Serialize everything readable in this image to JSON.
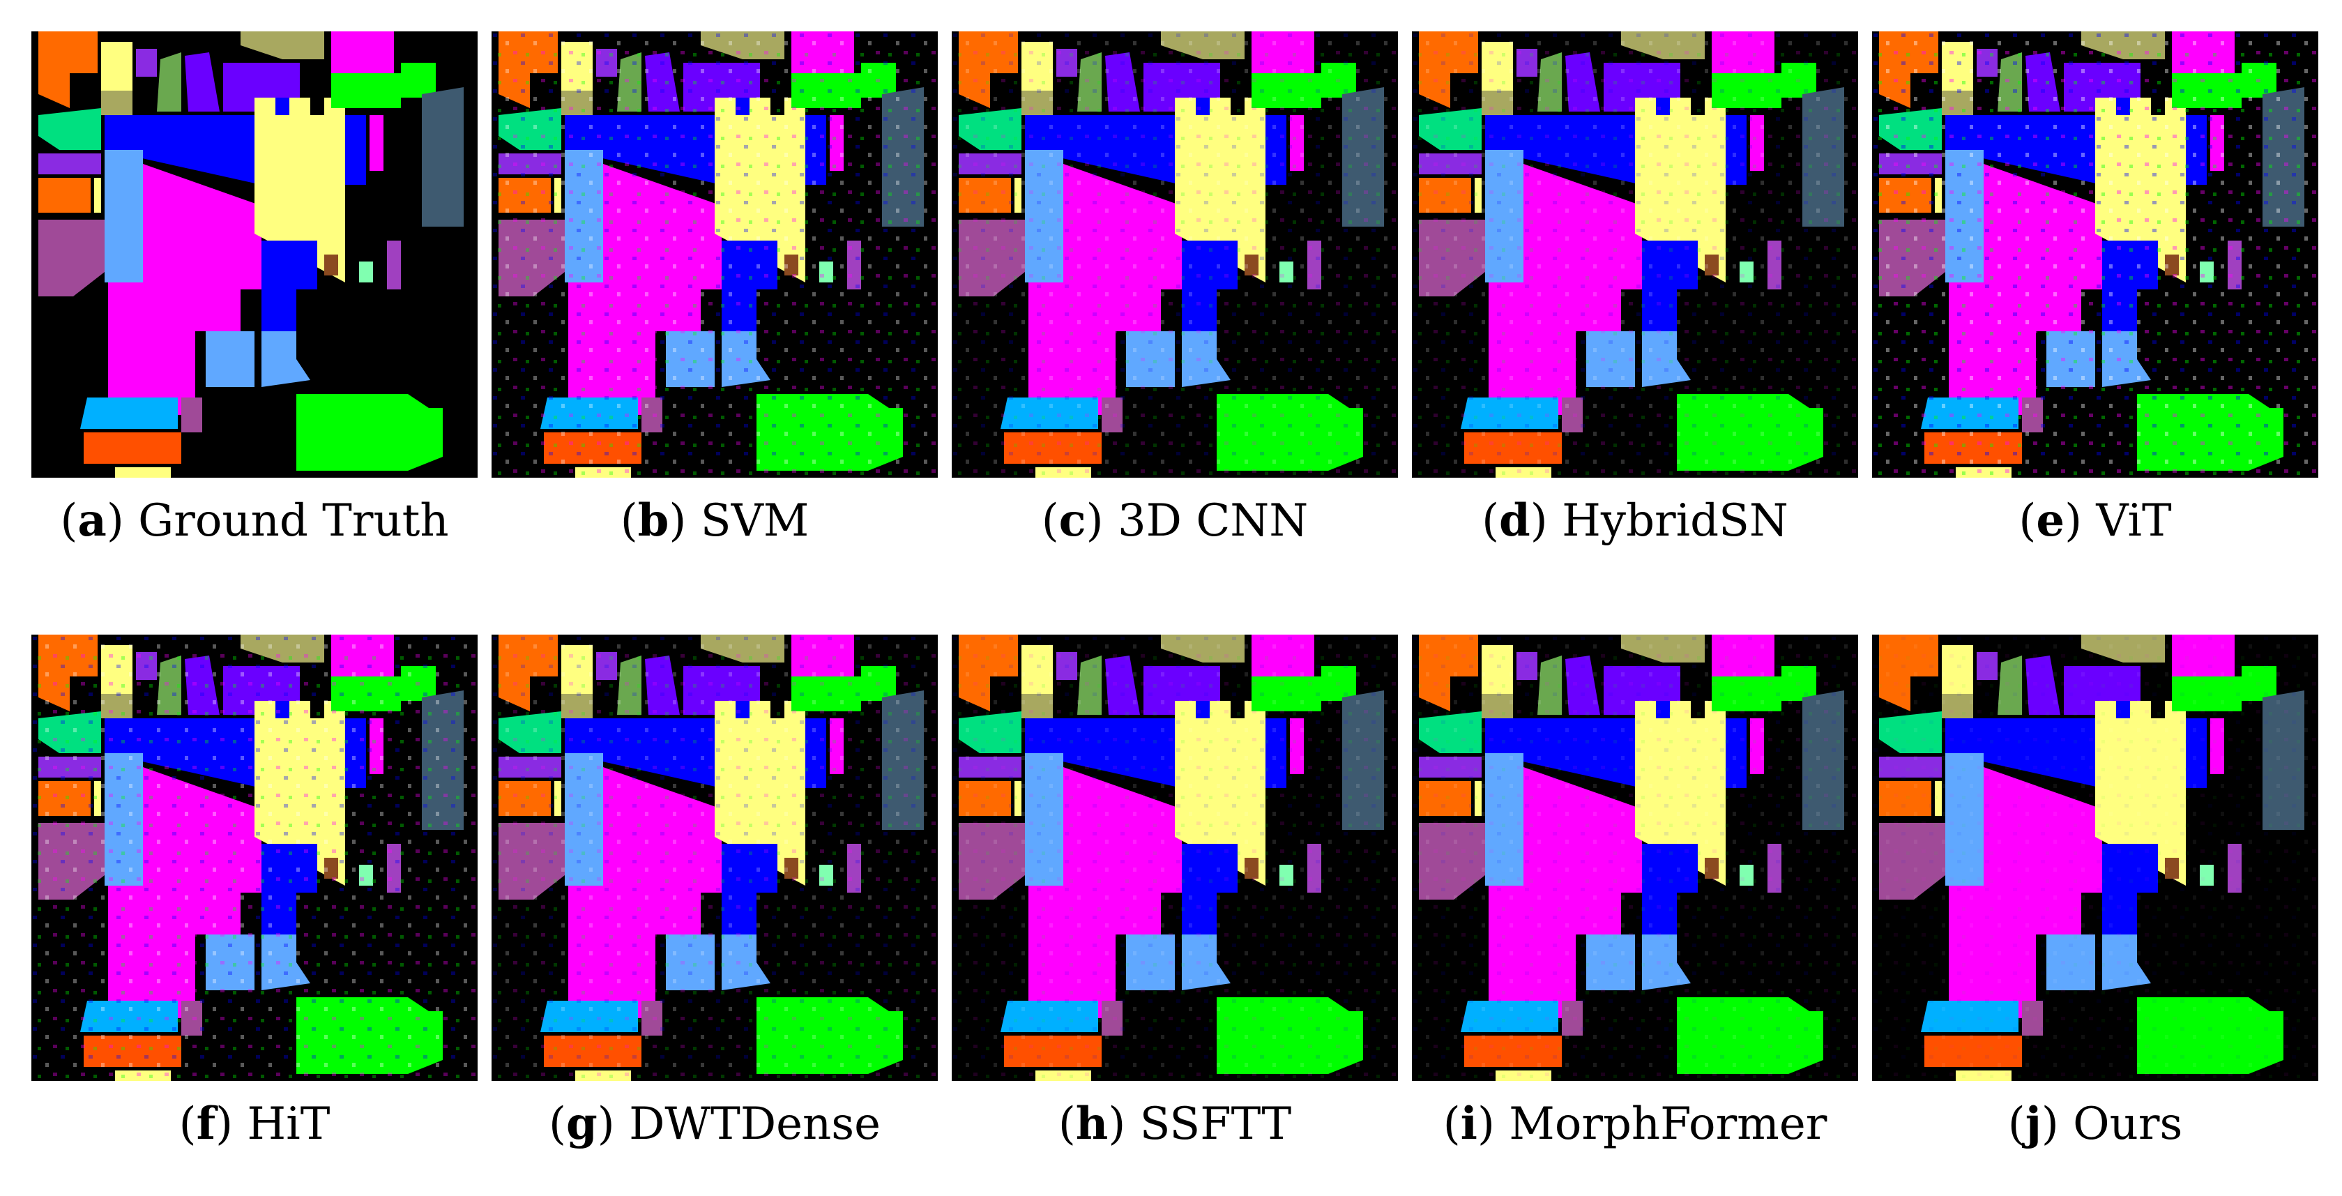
{
  "figure": {
    "panels": [
      {
        "letter": "a",
        "method": "Ground Truth"
      },
      {
        "letter": "b",
        "method": "SVM"
      },
      {
        "letter": "c",
        "method": "3D CNN"
      },
      {
        "letter": "d",
        "method": "HybridSN"
      },
      {
        "letter": "e",
        "method": "ViT"
      },
      {
        "letter": "f",
        "method": "HiT"
      },
      {
        "letter": "g",
        "method": "DWTDense"
      },
      {
        "letter": "h",
        "method": "SSFTT"
      },
      {
        "letter": "i",
        "method": "MorphFormer"
      },
      {
        "letter": "j",
        "method": "Ours"
      }
    ]
  },
  "colors": {
    "background": "#000000",
    "orange": "#ff6a00",
    "yellow_light": "#ffff80",
    "olive": "#a8a860",
    "magenta": "#ff00ff",
    "green": "#00ff00",
    "purple": "#8a2be2",
    "violet_blue": "#6a00ff",
    "blue": "#0000ff",
    "mint": "#00e080",
    "light_blue": "#60a8ff",
    "slate": "#3e5a70",
    "mauve": "#a04a98",
    "dark_orange": "#ff5000",
    "sky": "#00b0ff",
    "brown": "#8b4a20",
    "pale_green": "#80ffb0",
    "lilac": "#a040c0",
    "violet": "#9b30ff"
  }
}
